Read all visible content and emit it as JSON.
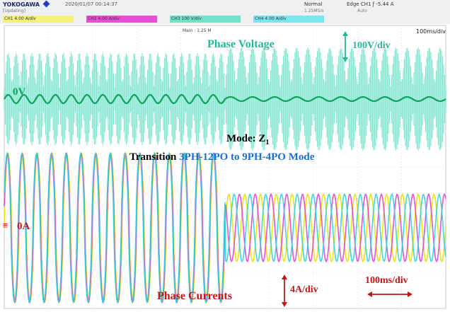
{
  "header": {
    "brand": "YOKOGAWA",
    "timestamp": "2020/01/07 00:14:37",
    "sub_label": "[Updating]",
    "trigger_mode": "Normal",
    "sample_rate": "1.25MS/s",
    "trigger_edge": "Edge CH1 ƒ -5.44 A",
    "trigger_sub": "Auto",
    "channel_chips": [
      {
        "label": "CH1 4.00 A/div",
        "color": "#f4f277"
      },
      {
        "label": "CH2 4.00 A/div",
        "color": "#e84fd6"
      },
      {
        "label": "CH3 100 V/div",
        "color": "#70e3c9"
      },
      {
        "label": "CH4 4.00 A/div",
        "color": "#7ce6ef"
      }
    ],
    "main_label": "Main : 1.25 M",
    "timebase": "100ms/div"
  },
  "annotations": {
    "voltage_title": "Phase Voltage",
    "voltage_scale": "100V/div",
    "zero_volt": "0V",
    "mode_prefix": "Mode: Z",
    "mode_subscript": "1",
    "transition_prefix": "Transition",
    "transition_modes": "3PH-12PO to 9PH-4PO Mode",
    "zero_amp": "0A",
    "current_title": "Phase Currents",
    "current_scale": "4A/div",
    "time_scale": "100ms/div"
  },
  "colors": {
    "voltage_envelope": "#70e3c9",
    "voltage_trace": "#10a060",
    "current_a": "#e8e000",
    "current_b": "#e040d0",
    "current_c": "#30d0e0",
    "grid": "#c8c8c8",
    "voltage_label": "#2ab598",
    "current_label": "#c01818",
    "mode_highlight": "#1a6ed0",
    "arrow_teal": "#2ab598",
    "arrow_red": "#c01818"
  },
  "chart_data": {
    "type": "line",
    "title": "",
    "xlabel": "",
    "ylabel": "",
    "grid": true,
    "x_divisions": 10,
    "y_divisions": 8,
    "x_unit": "ms",
    "ms_per_div": 100,
    "xlim": [
      0,
      1000
    ],
    "transition_time_ms": 500,
    "series": [
      {
        "name": "Phase Voltage",
        "scale": "100V/div",
        "zero_level": "0V",
        "segments": [
          {
            "from_ms": 0,
            "to_ms": 500,
            "cycles_per_div": 2.8,
            "fundamental_amplitude_div": 0.12,
            "pwm_envelope_amplitude_div": 1.3
          },
          {
            "from_ms": 500,
            "to_ms": 1000,
            "cycles_per_div": 2.0,
            "fundamental_amplitude_div": 0.06,
            "pwm_envelope_amplitude_div": 1.45
          }
        ]
      },
      {
        "name": "Phase Currents",
        "scale": "4A/div",
        "zero_level": "0A",
        "phases": 3,
        "segments": [
          {
            "from_ms": 0,
            "to_ms": 500,
            "cycles_per_div": 3.0,
            "amplitude_div": 2.1,
            "phase_shift_deg": [
              0,
              10,
              20
            ]
          },
          {
            "from_ms": 500,
            "to_ms": 1000,
            "cycles_per_div": 2.8,
            "amplitude_div": 0.95,
            "phase_shift_deg": [
              0,
              120,
              240
            ]
          }
        ]
      }
    ]
  }
}
